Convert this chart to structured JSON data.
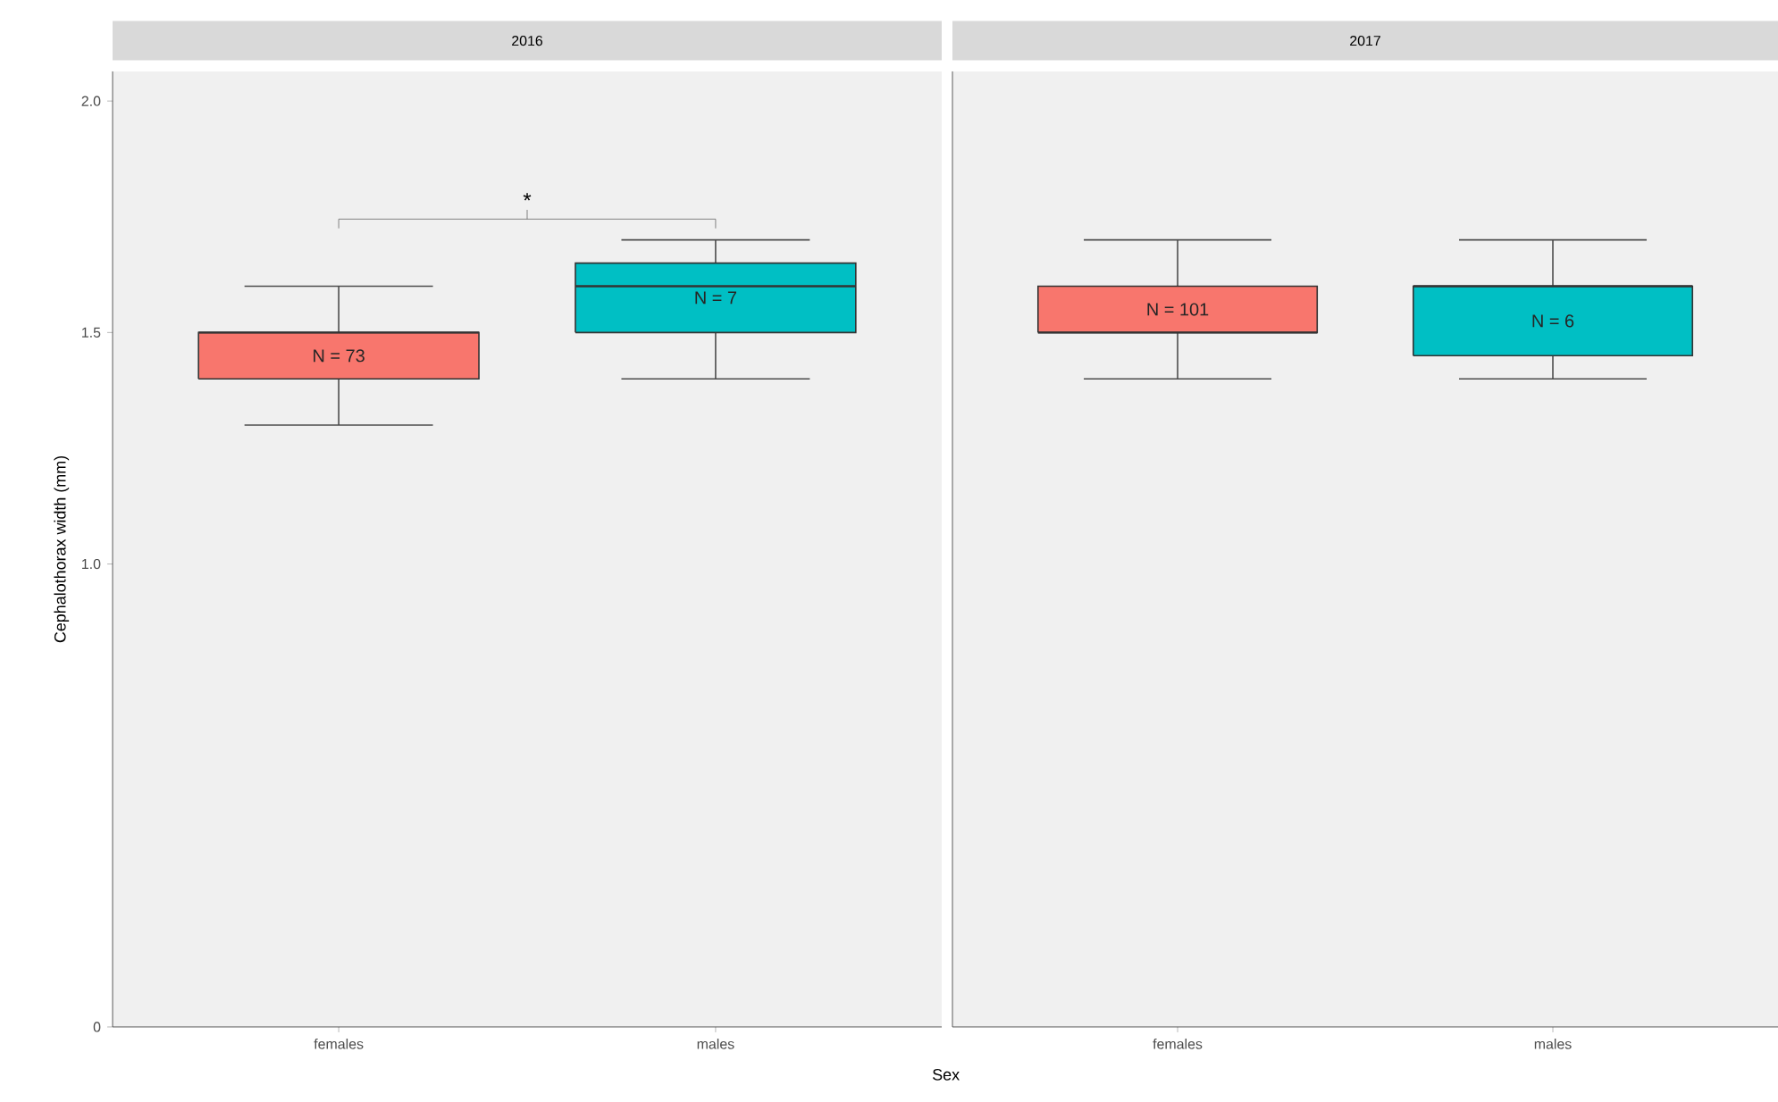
{
  "chart_data": [
    {
      "type": "box",
      "title": "2016",
      "xlabel": "Sex",
      "ylabel": "Cephalothorax width (mm)",
      "categories": [
        "females",
        "males"
      ],
      "colors": [
        "#f8766d",
        "#00bfc4"
      ],
      "boxes": [
        {
          "low": 1.3,
          "q1": 1.4,
          "median": 1.5,
          "q3": 1.5,
          "high": 1.6
        },
        {
          "low": 1.4,
          "q1": 1.5,
          "median": 1.6,
          "q3": 1.65,
          "high": 1.7
        }
      ],
      "ylim": [
        0,
        2.064
      ],
      "yticks": [
        0,
        {
          "value": 1.0,
          "label": "1.0"
        },
        1.5,
        {
          "value": 2.0,
          "label": "2.0"
        }
      ],
      "annotations": [
        "N = 73",
        "N = 7",
        "*"
      ]
    },
    {
      "type": "box",
      "title": "2017",
      "categories": [
        "females",
        "males"
      ],
      "colors": [
        "#f8766d",
        "#00bfc4"
      ],
      "boxes": [
        {
          "low": 1.4,
          "q1": 1.5,
          "median": 1.5,
          "q3": 1.6,
          "high": 1.7
        },
        {
          "low": 1.4,
          "q1": 1.45,
          "median": 1.6,
          "q3": 1.6,
          "high": 1.7
        }
      ],
      "ylim": [
        0,
        2.064
      ],
      "tick_labels": "x",
      "annotations": [
        "N = 101",
        "N = 6"
      ]
    }
  ]
}
